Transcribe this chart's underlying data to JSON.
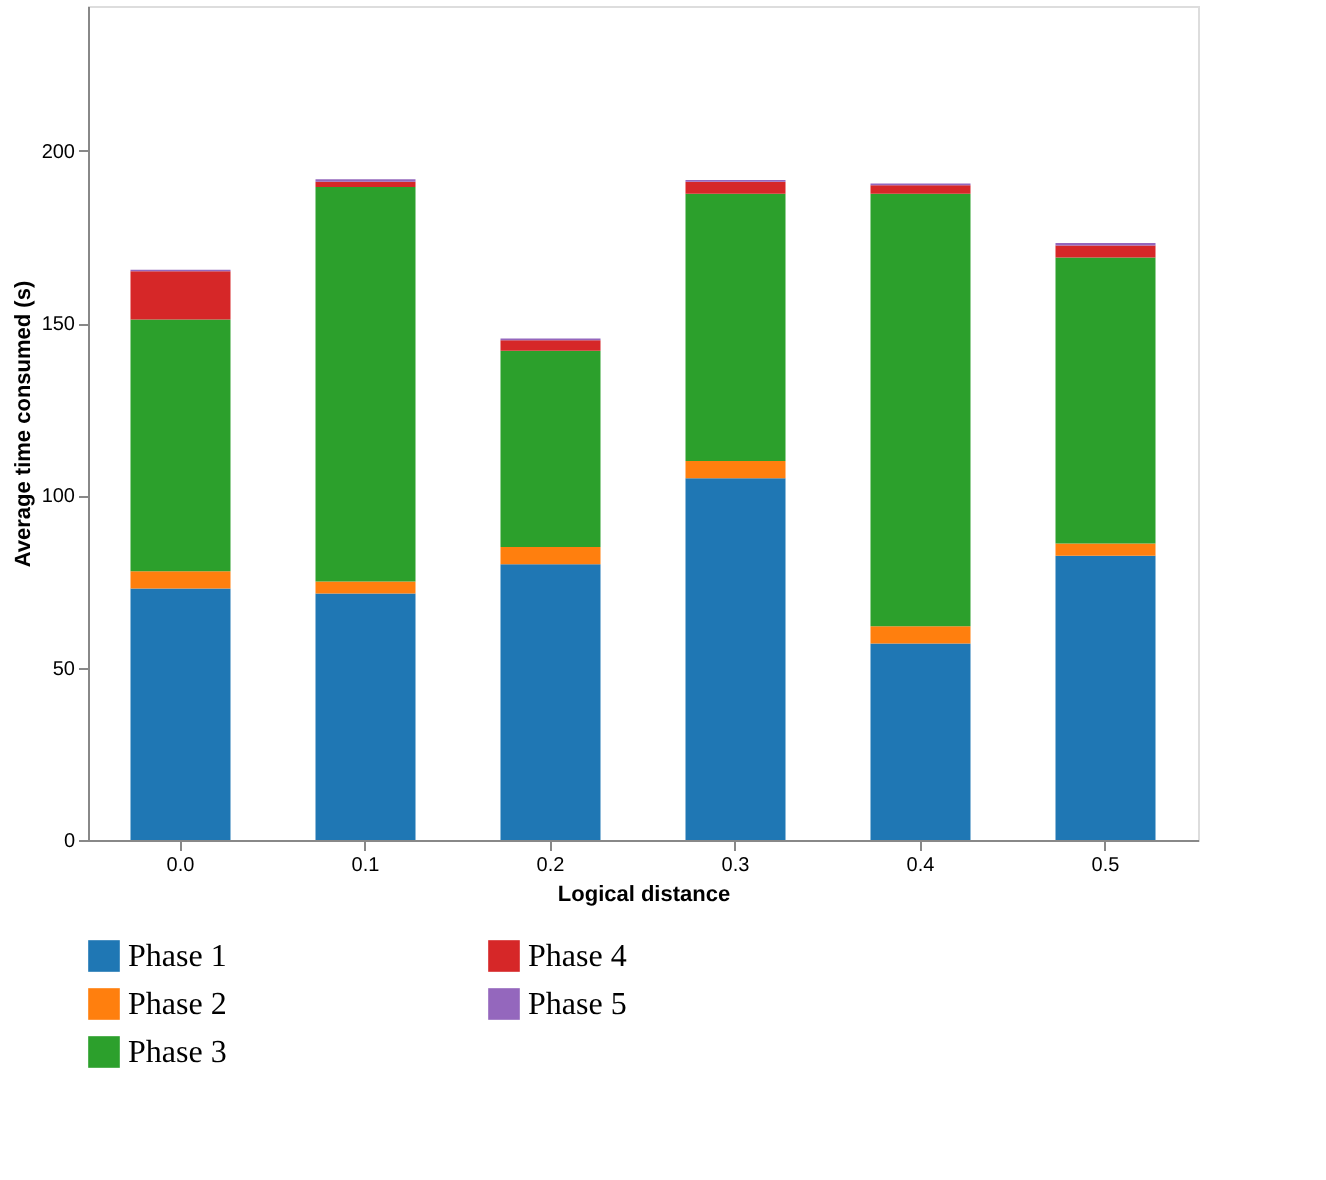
{
  "chart_data": {
    "type": "bar",
    "stacked": true,
    "xlabel": "Logical distance",
    "ylabel": "Average time consumed (s)",
    "categories": [
      "0.0",
      "0.1",
      "0.2",
      "0.3",
      "0.4",
      "0.5"
    ],
    "series": [
      {
        "name": "Phase 1",
        "color": "#1f77b4",
        "values": [
          73,
          71.5,
          80,
          105,
          57,
          82.5
        ]
      },
      {
        "name": "Phase 2",
        "color": "#ff7f0e",
        "values": [
          5,
          3.5,
          5,
          5,
          5,
          3.5
        ]
      },
      {
        "name": "Phase 3",
        "color": "#2ca02c",
        "values": [
          73,
          114.5,
          57,
          77.5,
          125.5,
          83
        ]
      },
      {
        "name": "Phase 4",
        "color": "#d62728",
        "values": [
          14,
          1.5,
          3,
          3.5,
          2.5,
          3.5
        ]
      },
      {
        "name": "Phase 5",
        "color": "#9467bd",
        "values": [
          0.5,
          0.7,
          0.5,
          0.5,
          0.5,
          0.7
        ]
      }
    ],
    "ylim": [
      0,
      242
    ],
    "yticks": [
      0,
      50,
      100,
      150,
      200
    ],
    "grid": false,
    "legend": "bottom"
  }
}
